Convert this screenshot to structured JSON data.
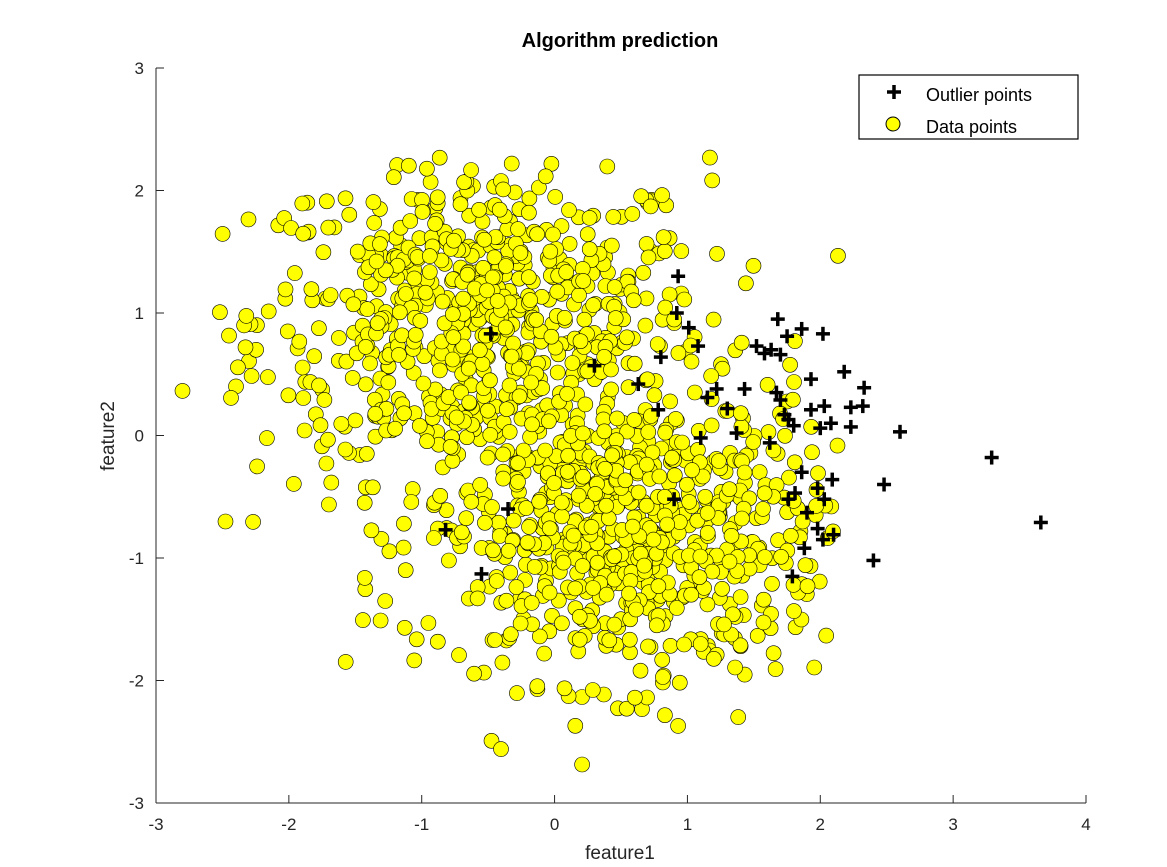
{
  "chart_data": {
    "type": "scatter",
    "title": "Algorithm prediction",
    "xlabel": "feature1",
    "ylabel": "feature2",
    "xlim": [
      -3,
      4
    ],
    "ylim": [
      -3,
      3
    ],
    "xticks": [
      -3,
      -2,
      -1,
      0,
      1,
      2,
      3,
      4
    ],
    "yticks": [
      -3,
      -2,
      -1,
      0,
      1,
      2,
      3
    ],
    "grid": false,
    "legend_position": "top-right",
    "series": [
      {
        "name": "Outlier points",
        "marker": "plus",
        "color": "#000000",
        "points": [
          [
            1.68,
            0.95
          ],
          [
            1.86,
            0.87
          ],
          [
            2.02,
            0.83
          ],
          [
            1.75,
            0.81
          ],
          [
            1.52,
            0.73
          ],
          [
            1.58,
            0.67
          ],
          [
            1.7,
            0.66
          ],
          [
            1.63,
            0.7
          ],
          [
            2.18,
            0.52
          ],
          [
            1.93,
            0.46
          ],
          [
            2.33,
            0.39
          ],
          [
            2.23,
            0.23
          ],
          [
            2.32,
            0.24
          ],
          [
            2.03,
            0.24
          ],
          [
            1.93,
            0.21
          ],
          [
            2.08,
            0.1
          ],
          [
            2.0,
            0.06
          ],
          [
            2.23,
            0.07
          ],
          [
            2.6,
            0.03
          ],
          [
            1.7,
            0.29
          ],
          [
            1.73,
            0.17
          ],
          [
            1.76,
            0.13
          ],
          [
            1.8,
            0.08
          ],
          [
            1.67,
            0.35
          ],
          [
            1.43,
            0.38
          ],
          [
            1.22,
            0.38
          ],
          [
            1.3,
            0.22
          ],
          [
            1.15,
            0.31
          ],
          [
            1.08,
            0.73
          ],
          [
            1.01,
            0.88
          ],
          [
            0.92,
            1.0
          ],
          [
            0.93,
            1.3
          ],
          [
            1.37,
            0.02
          ],
          [
            1.62,
            -0.06
          ],
          [
            1.1,
            -0.02
          ],
          [
            3.29,
            -0.18
          ],
          [
            1.86,
            -0.3
          ],
          [
            2.09,
            -0.36
          ],
          [
            1.98,
            -0.43
          ],
          [
            1.81,
            -0.47
          ],
          [
            1.76,
            -0.52
          ],
          [
            2.48,
            -0.4
          ],
          [
            2.03,
            -0.52
          ],
          [
            1.9,
            -0.63
          ],
          [
            1.98,
            -0.76
          ],
          [
            2.02,
            -0.85
          ],
          [
            2.1,
            -0.81
          ],
          [
            1.88,
            -0.92
          ],
          [
            1.79,
            -1.15
          ],
          [
            2.4,
            -1.02
          ],
          [
            3.66,
            -0.71
          ],
          [
            0.8,
            0.64
          ],
          [
            0.78,
            0.21
          ],
          [
            0.63,
            0.42
          ],
          [
            0.9,
            -0.52
          ],
          [
            -0.35,
            -0.6
          ],
          [
            -0.48,
            0.83
          ],
          [
            0.3,
            0.57
          ],
          [
            -0.82,
            -0.77
          ],
          [
            -0.55,
            -1.13
          ]
        ]
      },
      {
        "name": "Data points",
        "marker": "circle",
        "color": "#ffff00",
        "edge_color": "#000000"
      }
    ],
    "note_data_points": "The 'Data points' series is a dense cloud of about 1500 yellow circles formed by two overlapping clusters, one centred near (-0.5, 1.0) and one near (0.5, -0.8), spanning roughly x from -2.9 to 2.1 and y from -2.7 to 2.3."
  }
}
